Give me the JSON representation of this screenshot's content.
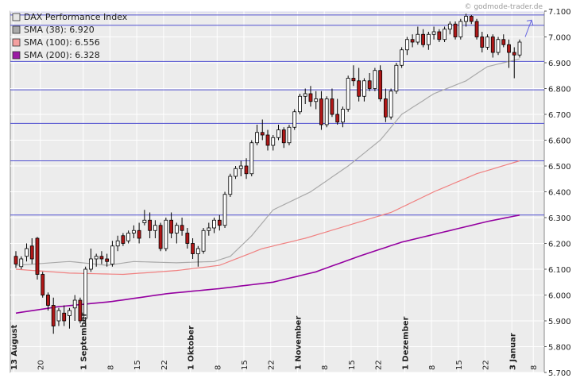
{
  "watermark": "© godmode-trader.de",
  "chart_data": {
    "type": "candlestick",
    "title": "DAX Performance Index",
    "ylim": [
      5700,
      7100
    ],
    "y_ticks": [
      5700,
      5800,
      5900,
      6000,
      6100,
      6200,
      6300,
      6400,
      6500,
      6600,
      6700,
      6800,
      6900,
      7000,
      7100
    ],
    "y_tick_labels": [
      "5.700",
      "5.800",
      "5.900",
      "6.000",
      "6.100",
      "6.200",
      "6.300",
      "6.400",
      "6.500",
      "6.600",
      "6.700",
      "6.800",
      "6.900",
      "7.000",
      "7.100"
    ],
    "grid": true,
    "legend_position": "top-left",
    "horizontal_levels": [
      7085,
      7045,
      6905,
      6795,
      6665,
      6520,
      6310
    ],
    "x_labels": [
      {
        "idx": 0,
        "label": "13 August",
        "major": true
      },
      {
        "idx": 5,
        "label": "20",
        "major": false
      },
      {
        "idx": 13,
        "label": "1 September",
        "major": true
      },
      {
        "idx": 18,
        "label": "8",
        "major": false
      },
      {
        "idx": 23,
        "label": "15",
        "major": false
      },
      {
        "idx": 28,
        "label": "22",
        "major": false
      },
      {
        "idx": 33,
        "label": "1 Oktober",
        "major": true
      },
      {
        "idx": 38,
        "label": "8",
        "major": false
      },
      {
        "idx": 43,
        "label": "15",
        "major": false
      },
      {
        "idx": 48,
        "label": "22",
        "major": false
      },
      {
        "idx": 53,
        "label": "1 November",
        "major": true
      },
      {
        "idx": 58,
        "label": "8",
        "major": false
      },
      {
        "idx": 63,
        "label": "15",
        "major": false
      },
      {
        "idx": 68,
        "label": "22",
        "major": false
      },
      {
        "idx": 73,
        "label": "1 Dezember",
        "major": true
      },
      {
        "idx": 78,
        "label": "8",
        "major": false
      },
      {
        "idx": 83,
        "label": "15",
        "major": false
      },
      {
        "idx": 88,
        "label": "22",
        "major": false
      },
      {
        "idx": 93,
        "label": "3 Januar",
        "major": true
      },
      {
        "idx": 97,
        "label": "8",
        "major": false
      }
    ],
    "series": [
      {
        "name": "SMA (38): 6.920",
        "color": "#a9a9a9",
        "swatch": "#a9a9a9",
        "knots": [
          [
            0,
            6115
          ],
          [
            10,
            6130
          ],
          [
            17,
            6115
          ],
          [
            22,
            6130
          ],
          [
            30,
            6125
          ],
          [
            37,
            6130
          ],
          [
            40,
            6150
          ],
          [
            44,
            6230
          ],
          [
            48,
            6330
          ],
          [
            55,
            6400
          ],
          [
            62,
            6500
          ],
          [
            68,
            6600
          ],
          [
            72,
            6700
          ],
          [
            78,
            6780
          ],
          [
            84,
            6830
          ],
          [
            88,
            6885
          ],
          [
            95,
            6920
          ],
          [
            99,
            6935
          ]
        ]
      },
      {
        "name": "SMA (100): 6.556",
        "color": "#f08080",
        "swatch": "#f4a0a0",
        "knots": [
          [
            0,
            6100
          ],
          [
            10,
            6085
          ],
          [
            20,
            6080
          ],
          [
            30,
            6095
          ],
          [
            38,
            6115
          ],
          [
            46,
            6180
          ],
          [
            54,
            6220
          ],
          [
            62,
            6270
          ],
          [
            70,
            6320
          ],
          [
            78,
            6400
          ],
          [
            86,
            6470
          ],
          [
            94,
            6520
          ],
          [
            99,
            6556
          ]
        ]
      },
      {
        "name": "SMA (200): 6.328",
        "color": "#9400a0",
        "swatch": "#9b1aa4",
        "knots": [
          [
            0,
            5930
          ],
          [
            8,
            5955
          ],
          [
            18,
            5975
          ],
          [
            28,
            6005
          ],
          [
            38,
            6025
          ],
          [
            48,
            6050
          ],
          [
            56,
            6090
          ],
          [
            64,
            6150
          ],
          [
            72,
            6205
          ],
          [
            80,
            6245
          ],
          [
            88,
            6285
          ],
          [
            94,
            6310
          ],
          [
            99,
            6328
          ]
        ]
      }
    ],
    "candles": [
      [
        6150,
        6170,
        6105,
        6120
      ],
      [
        6110,
        6150,
        6100,
        6140
      ],
      [
        6150,
        6200,
        6130,
        6180
      ],
      [
        6190,
        6220,
        6120,
        6140
      ],
      [
        6220,
        6225,
        6060,
        6080
      ],
      [
        6080,
        6090,
        5990,
        6000
      ],
      [
        6000,
        6010,
        5940,
        5960
      ],
      [
        5960,
        5990,
        5850,
        5880
      ],
      [
        5900,
        5950,
        5880,
        5940
      ],
      [
        5930,
        5960,
        5880,
        5900
      ],
      [
        5920,
        5950,
        5870,
        5940
      ],
      [
        5950,
        6000,
        5900,
        5980
      ],
      [
        5980,
        5990,
        5890,
        5900
      ],
      [
        5910,
        6110,
        5880,
        6100
      ],
      [
        6100,
        6180,
        6090,
        6140
      ],
      [
        6140,
        6160,
        6110,
        6150
      ],
      [
        6150,
        6170,
        6120,
        6140
      ],
      [
        6140,
        6160,
        6110,
        6130
      ],
      [
        6120,
        6210,
        6110,
        6190
      ],
      [
        6190,
        6230,
        6170,
        6210
      ],
      [
        6230,
        6240,
        6190,
        6200
      ],
      [
        6210,
        6250,
        6200,
        6240
      ],
      [
        6240,
        6270,
        6220,
        6250
      ],
      [
        6250,
        6280,
        6200,
        6220
      ],
      [
        6280,
        6330,
        6270,
        6290
      ],
      [
        6290,
        6320,
        6220,
        6250
      ],
      [
        6250,
        6290,
        6220,
        6270
      ],
      [
        6270,
        6280,
        6170,
        6180
      ],
      [
        6180,
        6300,
        6170,
        6290
      ],
      [
        6290,
        6320,
        6220,
        6240
      ],
      [
        6240,
        6280,
        6200,
        6270
      ],
      [
        6270,
        6300,
        6230,
        6250
      ],
      [
        6240,
        6260,
        6180,
        6200
      ],
      [
        6200,
        6220,
        6140,
        6160
      ],
      [
        6160,
        6190,
        6110,
        6180
      ],
      [
        6170,
        6260,
        6160,
        6250
      ],
      [
        6250,
        6280,
        6230,
        6260
      ],
      [
        6260,
        6300,
        6240,
        6290
      ],
      [
        6290,
        6310,
        6250,
        6270
      ],
      [
        6270,
        6400,
        6260,
        6390
      ],
      [
        6390,
        6470,
        6380,
        6460
      ],
      [
        6460,
        6500,
        6450,
        6490
      ],
      [
        6490,
        6520,
        6460,
        6500
      ],
      [
        6500,
        6530,
        6450,
        6470
      ],
      [
        6470,
        6600,
        6460,
        6590
      ],
      [
        6590,
        6660,
        6580,
        6630
      ],
      [
        6630,
        6680,
        6600,
        6620
      ],
      [
        6620,
        6640,
        6560,
        6580
      ],
      [
        6580,
        6620,
        6560,
        6610
      ],
      [
        6610,
        6660,
        6600,
        6640
      ],
      [
        6640,
        6650,
        6570,
        6590
      ],
      [
        6590,
        6660,
        6580,
        6650
      ],
      [
        6650,
        6720,
        6640,
        6710
      ],
      [
        6710,
        6780,
        6700,
        6770
      ],
      [
        6770,
        6800,
        6740,
        6780
      ],
      [
        6780,
        6810,
        6730,
        6750
      ],
      [
        6750,
        6790,
        6720,
        6760
      ],
      [
        6760,
        6790,
        6640,
        6660
      ],
      [
        6660,
        6770,
        6650,
        6760
      ],
      [
        6760,
        6800,
        6690,
        6700
      ],
      [
        6700,
        6760,
        6660,
        6670
      ],
      [
        6670,
        6730,
        6650,
        6720
      ],
      [
        6720,
        6850,
        6710,
        6840
      ],
      [
        6840,
        6890,
        6810,
        6830
      ],
      [
        6830,
        6880,
        6750,
        6770
      ],
      [
        6770,
        6840,
        6750,
        6830
      ],
      [
        6830,
        6860,
        6790,
        6800
      ],
      [
        6800,
        6880,
        6790,
        6870
      ],
      [
        6870,
        6890,
        6750,
        6760
      ],
      [
        6760,
        6800,
        6670,
        6690
      ],
      [
        6690,
        6800,
        6680,
        6790
      ],
      [
        6790,
        6900,
        6780,
        6890
      ],
      [
        6890,
        6960,
        6880,
        6950
      ],
      [
        6950,
        7000,
        6930,
        6990
      ],
      [
        6990,
        7010,
        6960,
        6980
      ],
      [
        6980,
        7040,
        6970,
        7010
      ],
      [
        7010,
        7030,
        6960,
        6970
      ],
      [
        6970,
        7020,
        6950,
        7010
      ],
      [
        7010,
        7040,
        6990,
        7020
      ],
      [
        7020,
        7030,
        6980,
        6990
      ],
      [
        6990,
        7040,
        6980,
        7030
      ],
      [
        7030,
        7060,
        7010,
        7050
      ],
      [
        7050,
        7060,
        6990,
        7000
      ],
      [
        7000,
        7070,
        6990,
        7060
      ],
      [
        7060,
        7090,
        7040,
        7080
      ],
      [
        7080,
        7085,
        7050,
        7060
      ],
      [
        7060,
        7070,
        6990,
        7000
      ],
      [
        7000,
        7020,
        6940,
        6960
      ],
      [
        6960,
        7010,
        6950,
        7000
      ],
      [
        7000,
        7010,
        6920,
        6940
      ],
      [
        6940,
        7000,
        6930,
        6990
      ],
      [
        6990,
        7010,
        6960,
        6970
      ],
      [
        6970,
        6990,
        6880,
        6940
      ],
      [
        6940,
        6960,
        6840,
        6930
      ],
      [
        6930,
        6990,
        6920,
        6980
      ]
    ]
  }
}
